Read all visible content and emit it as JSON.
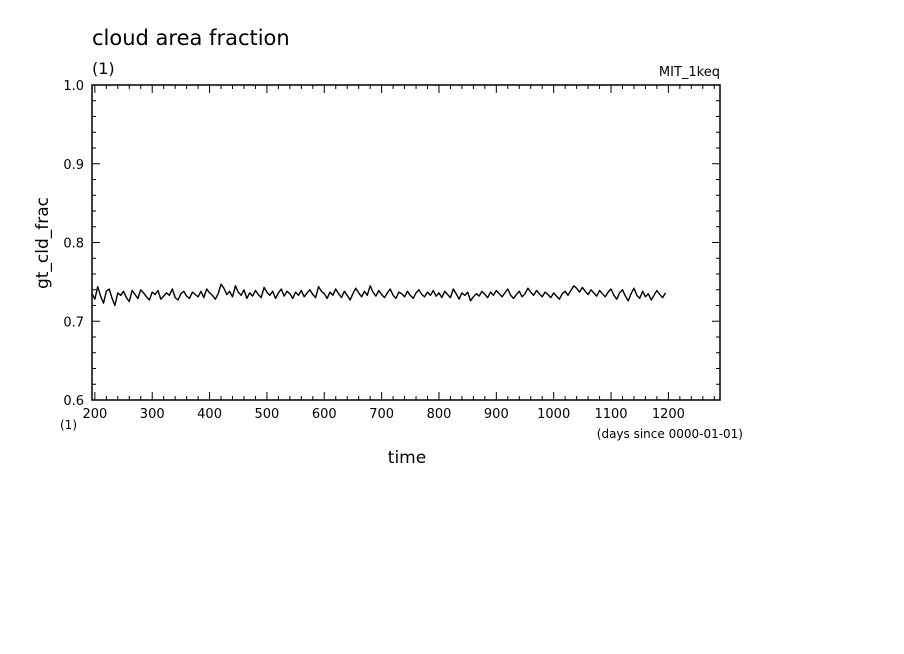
{
  "chart_data": {
    "type": "line",
    "title": "cloud area fraction",
    "title_unit": "(1)",
    "experiment": "MIT_1keq",
    "ylabel": "gt_cld_frac",
    "xlabel": "time",
    "x_unit_label": "(days since 0000-01-01)",
    "x_corner_label": "(1)",
    "ylim": [
      0.6,
      1.0
    ],
    "xlim": [
      195,
      1290
    ],
    "y_ticks": [
      "0.6",
      "0.7",
      "0.8",
      "0.9",
      "1.0"
    ],
    "x_ticks": [
      "200",
      "300",
      "400",
      "500",
      "600",
      "700",
      "800",
      "900",
      "1000",
      "1100",
      "1200"
    ],
    "grid": false,
    "series": [
      {
        "x_start": 195,
        "x_step": 5,
        "values": [
          0.735,
          0.728,
          0.744,
          0.732,
          0.723,
          0.738,
          0.741,
          0.729,
          0.72,
          0.736,
          0.733,
          0.738,
          0.73,
          0.725,
          0.739,
          0.734,
          0.729,
          0.74,
          0.736,
          0.731,
          0.727,
          0.737,
          0.734,
          0.739,
          0.728,
          0.732,
          0.736,
          0.733,
          0.741,
          0.73,
          0.727,
          0.735,
          0.738,
          0.732,
          0.729,
          0.737,
          0.734,
          0.731,
          0.738,
          0.73,
          0.741,
          0.736,
          0.733,
          0.728,
          0.735,
          0.747,
          0.742,
          0.734,
          0.738,
          0.731,
          0.745,
          0.737,
          0.733,
          0.74,
          0.729,
          0.736,
          0.732,
          0.739,
          0.734,
          0.73,
          0.743,
          0.737,
          0.733,
          0.738,
          0.729,
          0.736,
          0.741,
          0.732,
          0.738,
          0.735,
          0.729,
          0.737,
          0.733,
          0.739,
          0.731,
          0.736,
          0.74,
          0.734,
          0.73,
          0.744,
          0.738,
          0.735,
          0.729,
          0.737,
          0.733,
          0.741,
          0.735,
          0.73,
          0.738,
          0.733,
          0.727,
          0.735,
          0.742,
          0.736,
          0.731,
          0.738,
          0.733,
          0.745,
          0.737,
          0.732,
          0.739,
          0.734,
          0.73,
          0.736,
          0.741,
          0.733,
          0.729,
          0.737,
          0.735,
          0.731,
          0.738,
          0.733,
          0.729,
          0.736,
          0.74,
          0.734,
          0.731,
          0.737,
          0.733,
          0.739,
          0.732,
          0.736,
          0.73,
          0.738,
          0.734,
          0.73,
          0.741,
          0.735,
          0.728,
          0.736,
          0.733,
          0.737,
          0.726,
          0.731,
          0.735,
          0.732,
          0.738,
          0.734,
          0.73,
          0.737,
          0.733,
          0.739,
          0.735,
          0.731,
          0.736,
          0.741,
          0.733,
          0.729,
          0.734,
          0.738,
          0.731,
          0.735,
          0.742,
          0.737,
          0.733,
          0.739,
          0.735,
          0.731,
          0.737,
          0.734,
          0.73,
          0.736,
          0.732,
          0.728,
          0.735,
          0.738,
          0.733,
          0.739,
          0.745,
          0.742,
          0.737,
          0.743,
          0.738,
          0.734,
          0.74,
          0.736,
          0.732,
          0.739,
          0.735,
          0.731,
          0.737,
          0.741,
          0.733,
          0.728,
          0.736,
          0.74,
          0.732,
          0.726,
          0.735,
          0.742,
          0.733,
          0.729,
          0.738,
          0.731,
          0.735,
          0.727,
          0.733,
          0.739,
          0.734,
          0.73,
          0.736
        ]
      }
    ]
  }
}
